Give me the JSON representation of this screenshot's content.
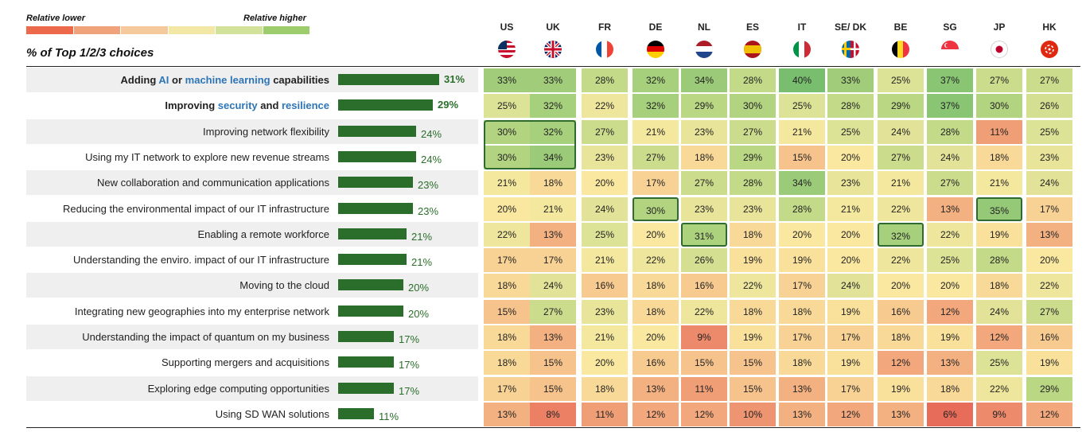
{
  "legend": {
    "lower_label": "Relative lower",
    "higher_label": "Relative higher",
    "scale_colors": [
      "#ec6a4b",
      "#f0a27a",
      "#f6c99c",
      "#f2e7a4",
      "#d3e29a",
      "#9ccc6b",
      "#5fb75f"
    ]
  },
  "title": "% of Top 1/2/3 choices",
  "countries": [
    {
      "code": "US",
      "flag": "us-flag-icon"
    },
    {
      "code": "UK",
      "flag": "uk-flag-icon"
    },
    {
      "code": "FR",
      "flag": "fr-flag-icon"
    },
    {
      "code": "DE",
      "flag": "de-flag-icon"
    },
    {
      "code": "NL",
      "flag": "nl-flag-icon"
    },
    {
      "code": "ES",
      "flag": "es-flag-icon"
    },
    {
      "code": "IT",
      "flag": "it-flag-icon"
    },
    {
      "code": "SE/ DK",
      "flag": "se-dk-flag-icon"
    },
    {
      "code": "BE",
      "flag": "be-flag-icon"
    },
    {
      "code": "SG",
      "flag": "sg-flag-icon"
    },
    {
      "code": "JP",
      "flag": "jp-flag-icon"
    },
    {
      "code": "HK",
      "flag": "hk-flag-icon"
    }
  ],
  "chart_data": {
    "type": "table",
    "columns": [
      "US",
      "UK",
      "FR",
      "DE",
      "NL",
      "ES",
      "IT",
      "SE/ DK",
      "BE",
      "SG",
      "JP",
      "HK"
    ],
    "rows": [
      {
        "label": "Adding AI or machine learning capabilities",
        "bold": true,
        "parts": [
          [
            "Adding ",
            false
          ],
          [
            "AI",
            true
          ],
          [
            " or ",
            false
          ],
          [
            "machine learning",
            true
          ],
          [
            " capabilities",
            false
          ]
        ],
        "total": 31,
        "values": [
          33,
          33,
          28,
          32,
          34,
          28,
          40,
          33,
          25,
          37,
          27,
          27
        ],
        "highlight": []
      },
      {
        "label": "Improving security and resilience",
        "bold": true,
        "parts": [
          [
            "Improving ",
            false
          ],
          [
            "security",
            true
          ],
          [
            " and ",
            false
          ],
          [
            "resilience",
            true
          ]
        ],
        "total": 29,
        "values": [
          25,
          32,
          22,
          32,
          29,
          30,
          25,
          28,
          29,
          37,
          30,
          26
        ],
        "highlight": []
      },
      {
        "label": "Improving network flexibility",
        "bold": false,
        "total": 24,
        "values": [
          30,
          32,
          27,
          21,
          23,
          27,
          21,
          25,
          24,
          28,
          11,
          25
        ],
        "highlight": []
      },
      {
        "label": "Using my IT network to explore new revenue streams",
        "bold": false,
        "total": 24,
        "values": [
          30,
          34,
          23,
          27,
          18,
          29,
          15,
          20,
          27,
          24,
          18,
          23
        ],
        "highlight": []
      },
      {
        "label": "New collaboration and communication applications",
        "bold": false,
        "total": 23,
        "values": [
          21,
          18,
          20,
          17,
          27,
          28,
          34,
          23,
          21,
          27,
          21,
          24
        ],
        "highlight": []
      },
      {
        "label": "Reducing the environmental impact of our IT infrastructure",
        "bold": false,
        "total": 23,
        "values": [
          20,
          21,
          24,
          30,
          23,
          23,
          28,
          21,
          22,
          13,
          35,
          17
        ],
        "highlight": [
          3,
          10
        ]
      },
      {
        "label": "Enabling a remote workforce",
        "bold": false,
        "total": 21,
        "values": [
          22,
          13,
          25,
          20,
          31,
          18,
          20,
          20,
          32,
          22,
          19,
          13
        ],
        "highlight": [
          4,
          8
        ]
      },
      {
        "label": "Understanding the enviro. impact of our IT infrastructure",
        "bold": false,
        "total": 21,
        "values": [
          17,
          17,
          21,
          22,
          26,
          19,
          19,
          20,
          22,
          25,
          28,
          20
        ],
        "highlight": []
      },
      {
        "label": "Moving to the cloud",
        "bold": false,
        "total": 20,
        "values": [
          18,
          24,
          16,
          18,
          16,
          22,
          17,
          24,
          20,
          20,
          18,
          22
        ],
        "highlight": []
      },
      {
        "label": "Integrating new geographies into my enterprise network",
        "bold": false,
        "total": 20,
        "values": [
          15,
          27,
          23,
          18,
          22,
          18,
          18,
          19,
          16,
          12,
          24,
          27
        ],
        "highlight": []
      },
      {
        "label": "Understanding the impact of quantum on my business",
        "bold": false,
        "total": 17,
        "values": [
          18,
          13,
          21,
          20,
          9,
          19,
          17,
          17,
          18,
          19,
          12,
          16
        ],
        "highlight": []
      },
      {
        "label": "Supporting mergers and acquisitions",
        "bold": false,
        "total": 17,
        "values": [
          18,
          15,
          20,
          16,
          15,
          15,
          18,
          19,
          12,
          13,
          25,
          19
        ],
        "highlight": []
      },
      {
        "label": "Exploring edge computing opportunities",
        "bold": false,
        "total": 17,
        "values": [
          17,
          15,
          18,
          13,
          11,
          15,
          13,
          17,
          19,
          18,
          22,
          29
        ],
        "highlight": []
      },
      {
        "label": "Using SD WAN solutions",
        "bold": false,
        "total": 11,
        "values": [
          13,
          8,
          11,
          12,
          12,
          10,
          13,
          12,
          13,
          6,
          9,
          12
        ],
        "highlight": []
      }
    ],
    "grouped_highlight": {
      "columns": [
        0,
        1
      ],
      "rows": [
        2,
        3
      ]
    },
    "value_suffix": "%"
  }
}
